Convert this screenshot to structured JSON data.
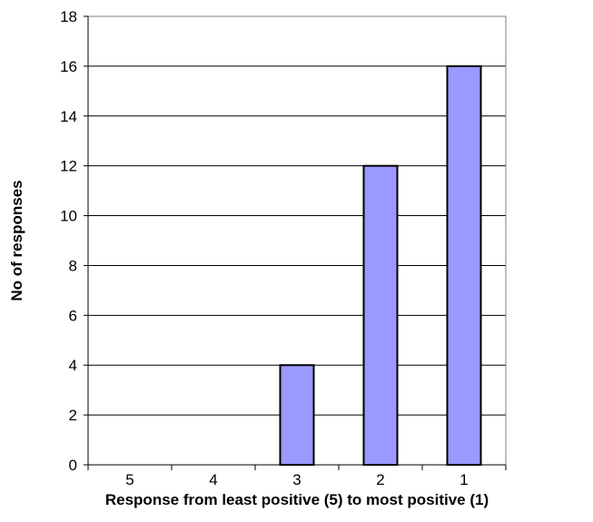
{
  "chart_data": {
    "type": "bar",
    "categories": [
      "5",
      "4",
      "3",
      "2",
      "1"
    ],
    "values": [
      0,
      0,
      4,
      12,
      16
    ],
    "xlabel": "Response from least positive (5) to most positive (1)",
    "ylabel": "No of responses",
    "ylim": [
      0,
      18
    ],
    "yticks": [
      0,
      2,
      4,
      6,
      8,
      10,
      12,
      14,
      16,
      18
    ],
    "grid": true,
    "legend": "none",
    "colors": {
      "bar_fill": "#9999ff",
      "bar_stroke": "#000000",
      "plot_border": "#808080",
      "gridline": "#000000"
    }
  }
}
